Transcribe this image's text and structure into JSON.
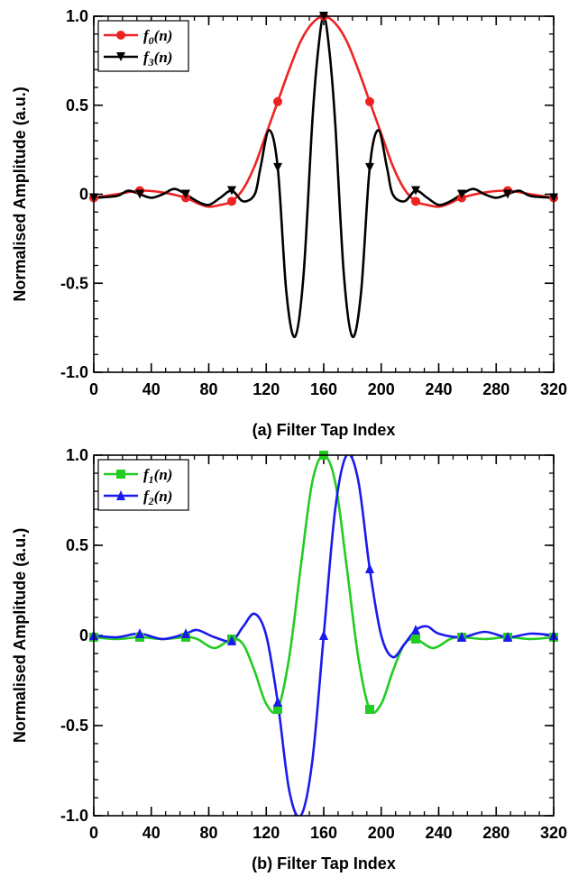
{
  "chart_data": [
    {
      "type": "line",
      "panel": "a",
      "xlabel": "(a) Filter Tap Index",
      "ylabel": "Normalised Amplitude (a.u.)",
      "xlim": [
        0,
        320
      ],
      "ylim": [
        -1.0,
        1.0
      ],
      "xticks": [
        "0",
        "40",
        "80",
        "120",
        "160",
        "200",
        "240",
        "280",
        "320"
      ],
      "yticks": [
        "-1.0",
        "-0.5",
        "0",
        "0.5",
        "1.0"
      ],
      "legend_position": "top-left",
      "grid": false,
      "series": [
        {
          "name": "f0(n)",
          "legend_base": "f",
          "legend_sub": "0",
          "legend_arg": "(n)",
          "color": "#ee2222",
          "marker": "circle",
          "x": [
            0,
            16,
            32,
            48,
            64,
            72,
            80,
            88,
            96,
            104,
            112,
            120,
            128,
            136,
            144,
            152,
            160,
            168,
            176,
            184,
            192,
            200,
            208,
            216,
            224,
            232,
            240,
            248,
            256,
            272,
            288,
            304,
            320
          ],
          "y": [
            -0.02,
            0.0,
            0.02,
            0.01,
            -0.02,
            -0.05,
            -0.07,
            -0.06,
            -0.04,
            0.03,
            0.16,
            0.34,
            0.52,
            0.7,
            0.86,
            0.96,
            1.0,
            0.96,
            0.86,
            0.7,
            0.52,
            0.34,
            0.16,
            0.03,
            -0.04,
            -0.06,
            -0.07,
            -0.05,
            -0.02,
            0.01,
            0.02,
            0.0,
            -0.02
          ],
          "marker_x": [
            0,
            32,
            64,
            96,
            128,
            160,
            192,
            224,
            256,
            288,
            320
          ],
          "marker_y": [
            -0.02,
            0.02,
            -0.02,
            -0.04,
            0.52,
            1.0,
            0.52,
            -0.04,
            -0.02,
            0.02,
            -0.02
          ]
        },
        {
          "name": "f3(n)",
          "legend_base": "f",
          "legend_sub": "3",
          "legend_arg": "(n)",
          "color": "#000000",
          "marker": "triangle-down",
          "x": [
            0,
            16,
            24,
            32,
            40,
            48,
            56,
            64,
            72,
            80,
            88,
            96,
            104,
            112,
            116,
            122,
            128,
            134,
            140,
            146,
            152,
            156,
            160,
            164,
            168,
            174,
            180,
            186,
            192,
            198,
            204,
            208,
            216,
            224,
            232,
            240,
            248,
            256,
            264,
            272,
            280,
            288,
            296,
            304,
            320
          ],
          "y": [
            -0.02,
            -0.01,
            0.02,
            0.0,
            -0.02,
            0.0,
            0.03,
            0.0,
            -0.04,
            -0.06,
            -0.02,
            0.02,
            -0.04,
            0.0,
            0.15,
            0.36,
            0.15,
            -0.55,
            -0.8,
            -0.45,
            0.4,
            0.8,
            1.0,
            0.8,
            0.4,
            -0.45,
            -0.8,
            -0.55,
            0.15,
            0.36,
            0.15,
            0.0,
            -0.04,
            0.02,
            -0.02,
            -0.06,
            -0.04,
            0.0,
            0.03,
            0.0,
            -0.02,
            0.0,
            0.02,
            -0.01,
            -0.02
          ],
          "marker_x": [
            0,
            32,
            64,
            96,
            128,
            160,
            192,
            224,
            256,
            288,
            320
          ],
          "marker_y": [
            -0.02,
            0.0,
            0.0,
            0.02,
            0.15,
            1.0,
            0.15,
            0.02,
            0.0,
            0.0,
            -0.02
          ]
        }
      ]
    },
    {
      "type": "line",
      "panel": "b",
      "xlabel": "(b) Filter Tap Index",
      "ylabel": "Normalised Amplitude (a.u.)",
      "xlim": [
        0,
        320
      ],
      "ylim": [
        -1.0,
        1.0
      ],
      "xticks": [
        "0",
        "40",
        "80",
        "120",
        "160",
        "200",
        "240",
        "280",
        "320"
      ],
      "yticks": [
        "-1.0",
        "-0.5",
        "0",
        "0.5",
        "1.0"
      ],
      "legend_position": "top-left",
      "grid": false,
      "series": [
        {
          "name": "f1(n)",
          "legend_base": "f",
          "legend_sub": "1",
          "legend_arg": "(n)",
          "color": "#22cc22",
          "marker": "square",
          "x": [
            0,
            16,
            32,
            48,
            64,
            72,
            84,
            96,
            104,
            112,
            120,
            128,
            136,
            144,
            152,
            160,
            168,
            176,
            184,
            192,
            200,
            208,
            216,
            224,
            236,
            248,
            256,
            272,
            288,
            304,
            320
          ],
          "y": [
            -0.01,
            -0.02,
            -0.01,
            -0.02,
            -0.01,
            -0.02,
            -0.07,
            -0.02,
            -0.05,
            -0.2,
            -0.38,
            -0.41,
            -0.12,
            0.38,
            0.85,
            1.0,
            0.85,
            0.38,
            -0.12,
            -0.41,
            -0.38,
            -0.2,
            -0.05,
            -0.02,
            -0.07,
            -0.02,
            -0.01,
            -0.02,
            -0.01,
            -0.02,
            -0.01
          ],
          "marker_x": [
            0,
            32,
            64,
            96,
            128,
            160,
            192,
            224,
            256,
            288,
            320
          ],
          "marker_y": [
            -0.01,
            -0.01,
            -0.01,
            -0.02,
            -0.41,
            1.0,
            -0.41,
            -0.02,
            -0.01,
            -0.01,
            -0.01
          ]
        },
        {
          "name": "f2(n)",
          "legend_base": "f",
          "legend_sub": "2",
          "legend_arg": "(n)",
          "color": "#1a1aee",
          "marker": "triangle-up",
          "x": [
            0,
            16,
            32,
            48,
            64,
            72,
            84,
            96,
            104,
            112,
            120,
            128,
            136,
            144,
            152,
            160,
            168,
            176,
            184,
            192,
            200,
            208,
            216,
            224,
            232,
            240,
            256,
            272,
            288,
            304,
            320
          ],
          "y": [
            0.0,
            -0.01,
            0.01,
            -0.02,
            0.01,
            0.03,
            -0.01,
            -0.03,
            0.05,
            0.12,
            0.0,
            -0.37,
            -0.86,
            -1.0,
            -0.7,
            0.0,
            0.7,
            1.0,
            0.86,
            0.37,
            0.0,
            -0.12,
            -0.05,
            0.03,
            0.05,
            0.01,
            -0.01,
            0.02,
            -0.01,
            0.01,
            0.0
          ],
          "marker_x": [
            0,
            32,
            64,
            96,
            128,
            160,
            192,
            224,
            256,
            288,
            320
          ],
          "marker_y": [
            0.0,
            0.01,
            0.01,
            -0.03,
            -0.37,
            0.0,
            0.37,
            0.03,
            -0.01,
            -0.01,
            0.0
          ]
        }
      ]
    }
  ]
}
